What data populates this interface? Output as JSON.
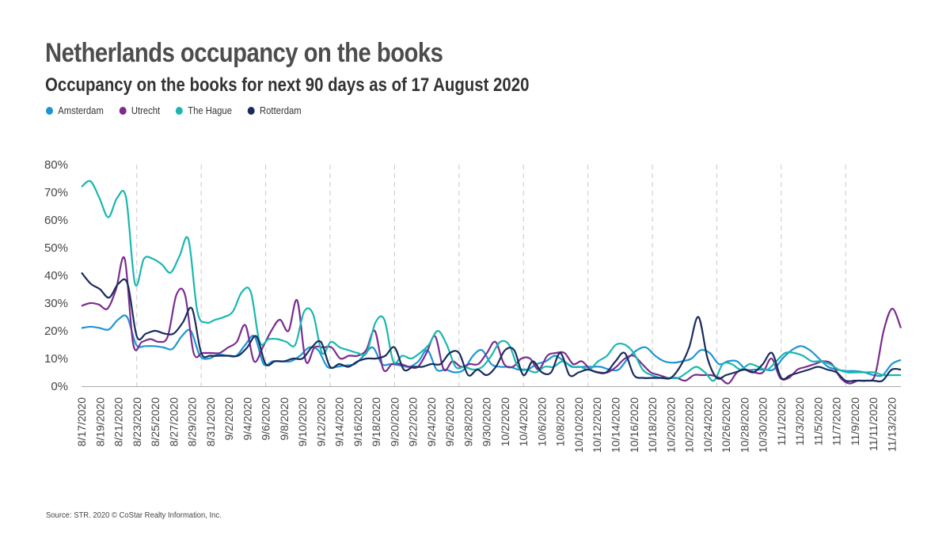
{
  "title": "Netherlands occupancy on the books",
  "subtitle": "Occupancy on the books for next 90 days as of 17 August 2020",
  "source": "Source: STR. 2020 © CoStar Realty Information, Inc.",
  "chart_data": {
    "type": "line",
    "title": "Netherlands occupancy on the books",
    "subtitle": "Occupancy on the books for next 90 days as of 17 August 2020",
    "xlabel": "",
    "ylabel": "",
    "ylim": [
      0,
      80
    ],
    "y_ticks": [
      "0%",
      "10%",
      "20%",
      "30%",
      "40%",
      "50%",
      "60%",
      "70%",
      "80%"
    ],
    "x_tick_labels": [
      "8/17/2020",
      "8/19/2020",
      "8/21/2020",
      "8/23/2020",
      "8/25/2020",
      "8/27/2020",
      "8/29/2020",
      "8/31/2020",
      "9/2/2020",
      "9/4/2020",
      "9/6/2020",
      "9/8/2020",
      "9/10/2020",
      "9/12/2020",
      "9/14/2020",
      "9/16/2020",
      "9/18/2020",
      "9/20/2020",
      "9/22/2020",
      "9/24/2020",
      "9/26/2020",
      "9/28/2020",
      "9/30/2020",
      "10/2/2020",
      "10/4/2020",
      "10/6/2020",
      "10/8/2020",
      "10/10/2020",
      "10/12/2020",
      "10/14/2020",
      "10/16/2020",
      "10/18/2020",
      "10/20/2020",
      "10/22/2020",
      "10/24/2020",
      "10/26/2020",
      "10/28/2020",
      "10/30/2020",
      "11/1/2020",
      "11/3/2020",
      "11/5/2020",
      "11/7/2020",
      "11/9/2020",
      "11/11/2020",
      "11/13/2020"
    ],
    "x_range": [
      "8/17/2020",
      "11/14/2020"
    ],
    "weekly_dashed_gridlines": true,
    "legend_position": "top-left",
    "series": [
      {
        "name": "Amsterdam",
        "color": "#1e95d3",
        "values": [
          21,
          21.5,
          21,
          20.5,
          24,
          25,
          15,
          14.5,
          14.5,
          14,
          13.5,
          18,
          20,
          11,
          10,
          11.5,
          11,
          11,
          15,
          18,
          8,
          9,
          9,
          9,
          11,
          14,
          13,
          7,
          7,
          7.5,
          8,
          11,
          14,
          8,
          8,
          7.5,
          7,
          9,
          13,
          6,
          6,
          5,
          6,
          11,
          13,
          8,
          7,
          7,
          6,
          6,
          8,
          9,
          11,
          9,
          7,
          7,
          7,
          7,
          6,
          6,
          10,
          13,
          14,
          11,
          9,
          8.5,
          9,
          10,
          13,
          12,
          8,
          9,
          9,
          6,
          6,
          6,
          6,
          10,
          13,
          14.5,
          13,
          10,
          7,
          6,
          5.5,
          5.5,
          5,
          4,
          4,
          8,
          9.5
        ]
      },
      {
        "name": "Utrecht",
        "color": "#7b2d8e",
        "values": [
          29,
          30,
          29.5,
          28,
          35,
          46,
          15,
          16,
          17,
          16,
          18,
          33,
          33,
          12,
          12,
          12,
          12,
          14,
          16,
          22,
          9,
          14,
          20,
          24,
          20,
          31,
          9,
          14,
          14,
          14,
          10,
          11,
          11,
          13,
          20,
          6,
          8,
          8,
          7,
          7,
          12,
          18,
          6,
          9,
          7,
          8,
          8,
          12,
          16,
          8,
          7,
          10,
          10,
          6,
          11,
          12,
          12,
          8,
          9,
          6,
          5,
          5,
          7,
          10,
          11,
          8,
          5,
          4,
          3,
          3,
          2,
          4,
          4,
          4,
          3,
          1,
          5,
          6,
          5,
          5,
          10,
          3,
          3,
          6,
          7,
          8,
          9,
          8,
          3,
          1,
          2,
          2,
          4,
          20,
          28,
          21
        ]
      },
      {
        "name": "The Hague",
        "color": "#19b7b0",
        "values": [
          72,
          74,
          68,
          61,
          68,
          68,
          37,
          46,
          46,
          44,
          41,
          47,
          53,
          27,
          23,
          24,
          25,
          27,
          34,
          34,
          16,
          17,
          17,
          16,
          15,
          27,
          26,
          12,
          16,
          14,
          13,
          12,
          12,
          23,
          24,
          9,
          11,
          10,
          12,
          15,
          20,
          15,
          7,
          7,
          6,
          7,
          11,
          16,
          15,
          7,
          6,
          5,
          7,
          7,
          9,
          7,
          7,
          6,
          9,
          11,
          15,
          15,
          12,
          6,
          4,
          3,
          3,
          3,
          5,
          7,
          5,
          2,
          8,
          8,
          6,
          8,
          7,
          6,
          9,
          12,
          12,
          11,
          9,
          9,
          8,
          6,
          5,
          5,
          5,
          5,
          4,
          4,
          4
        ]
      },
      {
        "name": "Rotterdam",
        "color": "#1a2c5b",
        "values": [
          41,
          37,
          35,
          32,
          37,
          37,
          18,
          19,
          20,
          19,
          19,
          23,
          28,
          12,
          11,
          11,
          11,
          11,
          14,
          18,
          8,
          9,
          9,
          10,
          10,
          14,
          16,
          7,
          8,
          7,
          9,
          10,
          10,
          11,
          14,
          6,
          7,
          7,
          8,
          8,
          12,
          12,
          4,
          6,
          4,
          7,
          13,
          13,
          4,
          9,
          5,
          5,
          12,
          4,
          5,
          6,
          5,
          5,
          9,
          12,
          4,
          3,
          3,
          3,
          3,
          7,
          14,
          25,
          10,
          3,
          4,
          5,
          6,
          5,
          8,
          12,
          3,
          4,
          5,
          6,
          7,
          6,
          5,
          2,
          2,
          2,
          2,
          2,
          6,
          6
        ]
      }
    ]
  }
}
